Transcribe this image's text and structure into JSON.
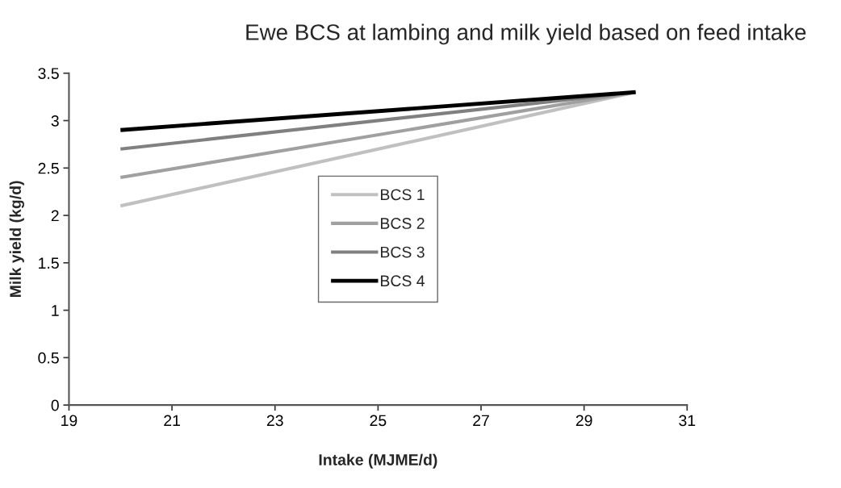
{
  "chart_data": {
    "type": "line",
    "title": "Ewe BCS at lambing and milk yield based on feed intake",
    "xlabel": "Intake (MJME/d)",
    "ylabel": "Milk yield (kg/d)",
    "x": [
      20,
      30
    ],
    "series": [
      {
        "name": "BCS 1",
        "color": "#c0c0c0",
        "values": [
          2.1,
          3.3
        ]
      },
      {
        "name": "BCS 2",
        "color": "#a0a0a0",
        "values": [
          2.4,
          3.3
        ]
      },
      {
        "name": "BCS 3",
        "color": "#808080",
        "values": [
          2.7,
          3.3
        ]
      },
      {
        "name": "BCS 4",
        "color": "#000000",
        "values": [
          2.9,
          3.3
        ]
      }
    ],
    "xlim": [
      19,
      31
    ],
    "xticks": [
      19,
      21,
      23,
      25,
      27,
      29,
      31
    ],
    "ylim": [
      0,
      3.5
    ],
    "yticks": [
      0,
      0.5,
      1,
      1.5,
      2,
      2.5,
      3,
      3.5
    ],
    "grid": false,
    "legend": "center",
    "marker": "none",
    "line_style": "solid"
  }
}
